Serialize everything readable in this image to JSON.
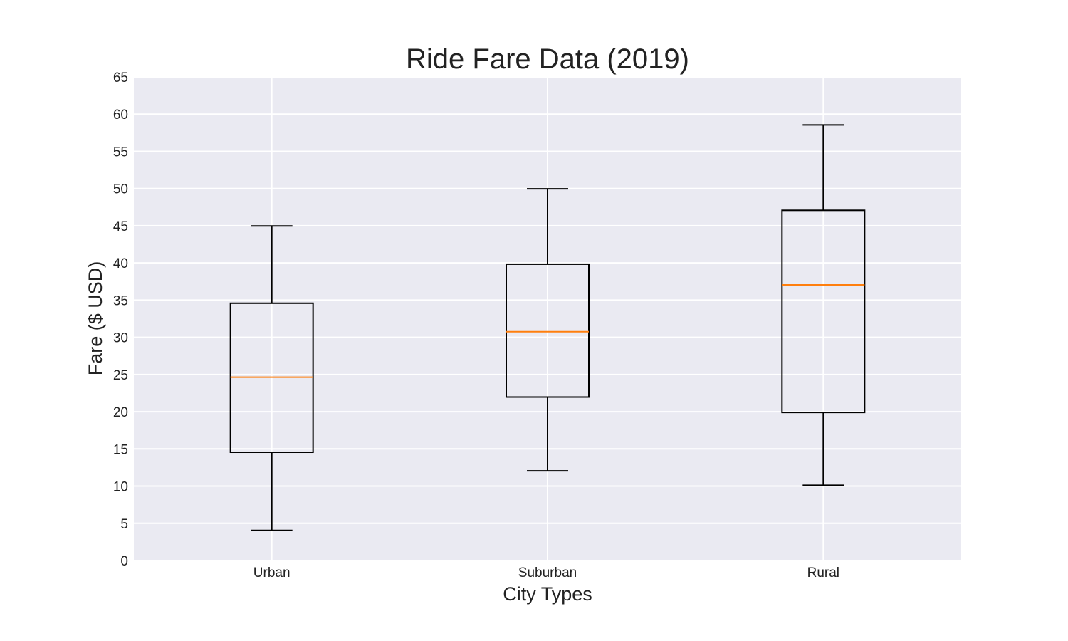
{
  "chart_data": {
    "type": "box",
    "title": "Ride Fare Data (2019)",
    "xlabel": "City Types",
    "ylabel": "Fare ($ USD)",
    "ylim": [
      0,
      65
    ],
    "yticks": [
      "0",
      "5",
      "10",
      "15",
      "20",
      "25",
      "30",
      "35",
      "40",
      "45",
      "50",
      "55",
      "60",
      "65"
    ],
    "categories": [
      "Urban",
      "Suburban",
      "Rural"
    ],
    "boxes": [
      {
        "category": "Urban",
        "whisker_low": 4.05,
        "q1": 14.55,
        "median": 24.64,
        "q3": 34.58,
        "whisker_high": 44.97
      },
      {
        "category": "Suburban",
        "whisker_low": 12.05,
        "q1": 21.97,
        "median": 30.75,
        "q3": 39.83,
        "whisker_high": 49.96
      },
      {
        "category": "Rural",
        "whisker_low": 10.11,
        "q1": 19.9,
        "median": 37.05,
        "q3": 47.07,
        "whisker_high": 58.55
      }
    ],
    "grid": true,
    "legend": "none",
    "colors": {
      "plot_background": "#eaeaf2",
      "grid": "#ffffff",
      "box": "#000000",
      "median": "#ff7f0e"
    }
  }
}
